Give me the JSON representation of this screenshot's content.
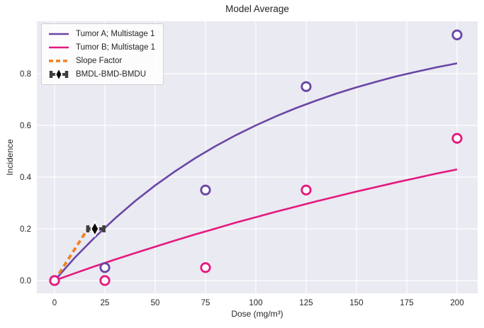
{
  "title": "Model Average",
  "chart_data": {
    "type": "line",
    "title": "Model Average",
    "xlabel": "Dose (mg/m³)",
    "ylabel": "Incidence",
    "xlim": [
      -9,
      211
    ],
    "ylim": [
      -0.05,
      1.0
    ],
    "xticks": [
      0,
      25,
      50,
      75,
      100,
      125,
      150,
      175,
      200
    ],
    "yticks": [
      "0.0",
      "0.2",
      "0.4",
      "0.6",
      "0.8"
    ],
    "grid": true,
    "plot_background": "#eaeaf2",
    "grid_color": "#ffffff",
    "text_color": "#262626",
    "legend_position": "upper left",
    "series": [
      {
        "name": "Tumor A; Multistage 1",
        "kind": "curve",
        "color": "#6a46a5",
        "x": [
          0,
          10,
          20,
          30,
          40,
          50,
          60,
          70,
          80,
          90,
          100,
          110,
          120,
          130,
          140,
          150,
          160,
          170,
          180,
          190,
          200
        ],
        "y": [
          0,
          0.088,
          0.167,
          0.24,
          0.307,
          0.368,
          0.423,
          0.474,
          0.52,
          0.562,
          0.6,
          0.635,
          0.667,
          0.696,
          0.723,
          0.747,
          0.769,
          0.79,
          0.808,
          0.825,
          0.84
        ]
      },
      {
        "name": "Tumor B; Multistage 1",
        "kind": "curve",
        "color": "#e4197f",
        "x": [
          0,
          10,
          20,
          30,
          40,
          50,
          60,
          70,
          80,
          90,
          100,
          110,
          120,
          130,
          140,
          150,
          160,
          170,
          180,
          190,
          200
        ],
        "y": [
          0,
          0.028,
          0.055,
          0.081,
          0.106,
          0.131,
          0.155,
          0.179,
          0.201,
          0.224,
          0.245,
          0.266,
          0.286,
          0.306,
          0.325,
          0.344,
          0.362,
          0.38,
          0.397,
          0.414,
          0.43
        ]
      },
      {
        "name": "Slope Factor",
        "kind": "dashed-line",
        "color": "#f08223",
        "x": [
          0,
          16.5
        ],
        "y": [
          0,
          0.2
        ]
      },
      {
        "name": "BMDL-BMD-BMDU",
        "kind": "errorbar-diamond",
        "bar_color": "#3f3f3f",
        "marker_color": "#0a0a0a",
        "bmdl": 16.5,
        "bmd": 20,
        "bmdu": 24.5,
        "bmr": 0.2
      }
    ],
    "scatter": [
      {
        "name": "Tumor A observations",
        "color": "#6a46a5",
        "points": [
          [
            0,
            0
          ],
          [
            25,
            0.05
          ],
          [
            75,
            0.35
          ],
          [
            125,
            0.75
          ],
          [
            200,
            0.95
          ]
        ]
      },
      {
        "name": "Tumor B observations",
        "color": "#e4197f",
        "points": [
          [
            0,
            0
          ],
          [
            25,
            0
          ],
          [
            75,
            0.05
          ],
          [
            125,
            0.35
          ],
          [
            200,
            0.55
          ]
        ]
      }
    ],
    "legend": {
      "entries": [
        "Tumor A; Multistage 1",
        "Tumor B; Multistage 1",
        "Slope Factor",
        "BMDL-BMD-BMDU"
      ]
    }
  }
}
